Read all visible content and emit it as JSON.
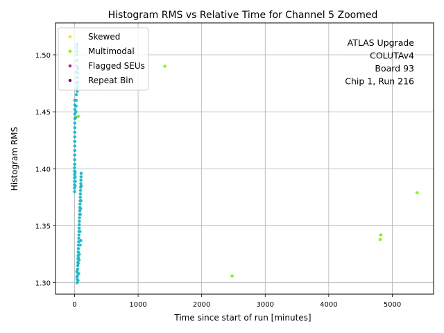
{
  "chart_data": {
    "type": "scatter",
    "title": "Histogram RMS vs Relative Time for Channel 5 Zoomed",
    "xlabel": "Time since start of run [minutes]",
    "ylabel": "Histogram RMS",
    "xlim": [
      -300,
      5650
    ],
    "ylim": [
      1.29,
      1.528
    ],
    "grid": true,
    "legend_position": "top-left",
    "x_ticks": [
      0,
      1000,
      2000,
      3000,
      4000,
      5000
    ],
    "x_tick_labels": [
      "0",
      "1000",
      "2000",
      "3000",
      "4000",
      "5000"
    ],
    "y_ticks": [
      1.3,
      1.35,
      1.4,
      1.45,
      1.5
    ],
    "y_tick_labels": [
      "1.30",
      "1.35",
      "1.40",
      "1.45",
      "1.50"
    ],
    "annotation": [
      "ATLAS Upgrade",
      "COLUTAv4",
      "Board 93",
      "Chip 1, Run 216"
    ],
    "series": [
      {
        "name": "Skewed",
        "color": "#f0f000",
        "points": []
      },
      {
        "name": "Multimodal",
        "color": "#7cfc00",
        "points": [
          [
            1420,
            1.49
          ],
          [
            2480,
            1.306
          ],
          [
            4820,
            1.342
          ],
          [
            4810,
            1.338
          ],
          [
            5390,
            1.379
          ],
          [
            60,
            1.446
          ]
        ]
      },
      {
        "name": "Flagged SEUs",
        "color": "#c71585",
        "points": []
      },
      {
        "name": "Repeat Bin",
        "color": "#800080",
        "points": []
      },
      {
        "name": "",
        "color": "#17becf",
        "points": [
          [
            0,
            1.38
          ],
          [
            0,
            1.383
          ],
          [
            0,
            1.386
          ],
          [
            0,
            1.389
          ],
          [
            0,
            1.392
          ],
          [
            0,
            1.395
          ],
          [
            0,
            1.398
          ],
          [
            0,
            1.401
          ],
          [
            2,
            1.404
          ],
          [
            2,
            1.408
          ],
          [
            2,
            1.412
          ],
          [
            3,
            1.416
          ],
          [
            3,
            1.42
          ],
          [
            3,
            1.424
          ],
          [
            3,
            1.428
          ],
          [
            3,
            1.432
          ],
          [
            4,
            1.436
          ],
          [
            4,
            1.44
          ],
          [
            4,
            1.444
          ],
          [
            4,
            1.448
          ],
          [
            4,
            1.452
          ],
          [
            5,
            1.456
          ],
          [
            5,
            1.46
          ],
          [
            10,
            1.393
          ],
          [
            10,
            1.397
          ],
          [
            12,
            1.389
          ],
          [
            8,
            1.385
          ],
          [
            20,
            1.445
          ],
          [
            22,
            1.45
          ],
          [
            24,
            1.455
          ],
          [
            26,
            1.46
          ],
          [
            28,
            1.465
          ],
          [
            30,
            1.47
          ],
          [
            30,
            1.475
          ],
          [
            32,
            1.48
          ],
          [
            32,
            1.485
          ],
          [
            34,
            1.49
          ],
          [
            34,
            1.495
          ],
          [
            36,
            1.5
          ],
          [
            36,
            1.503
          ],
          [
            38,
            1.506
          ],
          [
            38,
            1.509
          ],
          [
            42,
            1.468
          ],
          [
            44,
            1.472
          ],
          [
            46,
            1.476
          ],
          [
            48,
            1.48
          ],
          [
            50,
            1.484
          ],
          [
            52,
            1.488
          ],
          [
            40,
            1.3
          ],
          [
            42,
            1.303
          ],
          [
            44,
            1.306
          ],
          [
            46,
            1.309
          ],
          [
            48,
            1.312
          ],
          [
            50,
            1.315
          ],
          [
            52,
            1.318
          ],
          [
            54,
            1.321
          ],
          [
            56,
            1.324
          ],
          [
            58,
            1.327
          ],
          [
            60,
            1.33
          ],
          [
            62,
            1.333
          ],
          [
            64,
            1.336
          ],
          [
            66,
            1.339
          ],
          [
            68,
            1.342
          ],
          [
            70,
            1.345
          ],
          [
            72,
            1.348
          ],
          [
            74,
            1.351
          ],
          [
            76,
            1.354
          ],
          [
            78,
            1.357
          ],
          [
            80,
            1.36
          ],
          [
            82,
            1.363
          ],
          [
            84,
            1.366
          ],
          [
            86,
            1.369
          ],
          [
            88,
            1.372
          ],
          [
            90,
            1.375
          ],
          [
            92,
            1.378
          ],
          [
            94,
            1.381
          ],
          [
            96,
            1.384
          ],
          [
            98,
            1.387
          ],
          [
            100,
            1.39
          ],
          [
            102,
            1.393
          ],
          [
            104,
            1.396
          ],
          [
            36,
            1.31
          ],
          [
            38,
            1.305
          ],
          [
            55,
            1.302
          ],
          [
            65,
            1.308
          ],
          [
            70,
            1.32
          ],
          [
            75,
            1.325
          ],
          [
            58,
            1.317
          ],
          [
            62,
            1.322
          ],
          [
            85,
            1.345
          ],
          [
            90,
            1.36
          ],
          [
            95,
            1.365
          ],
          [
            100,
            1.372
          ],
          [
            105,
            1.385
          ],
          [
            98,
            1.337
          ],
          [
            88,
            1.333
          ]
        ]
      }
    ]
  }
}
